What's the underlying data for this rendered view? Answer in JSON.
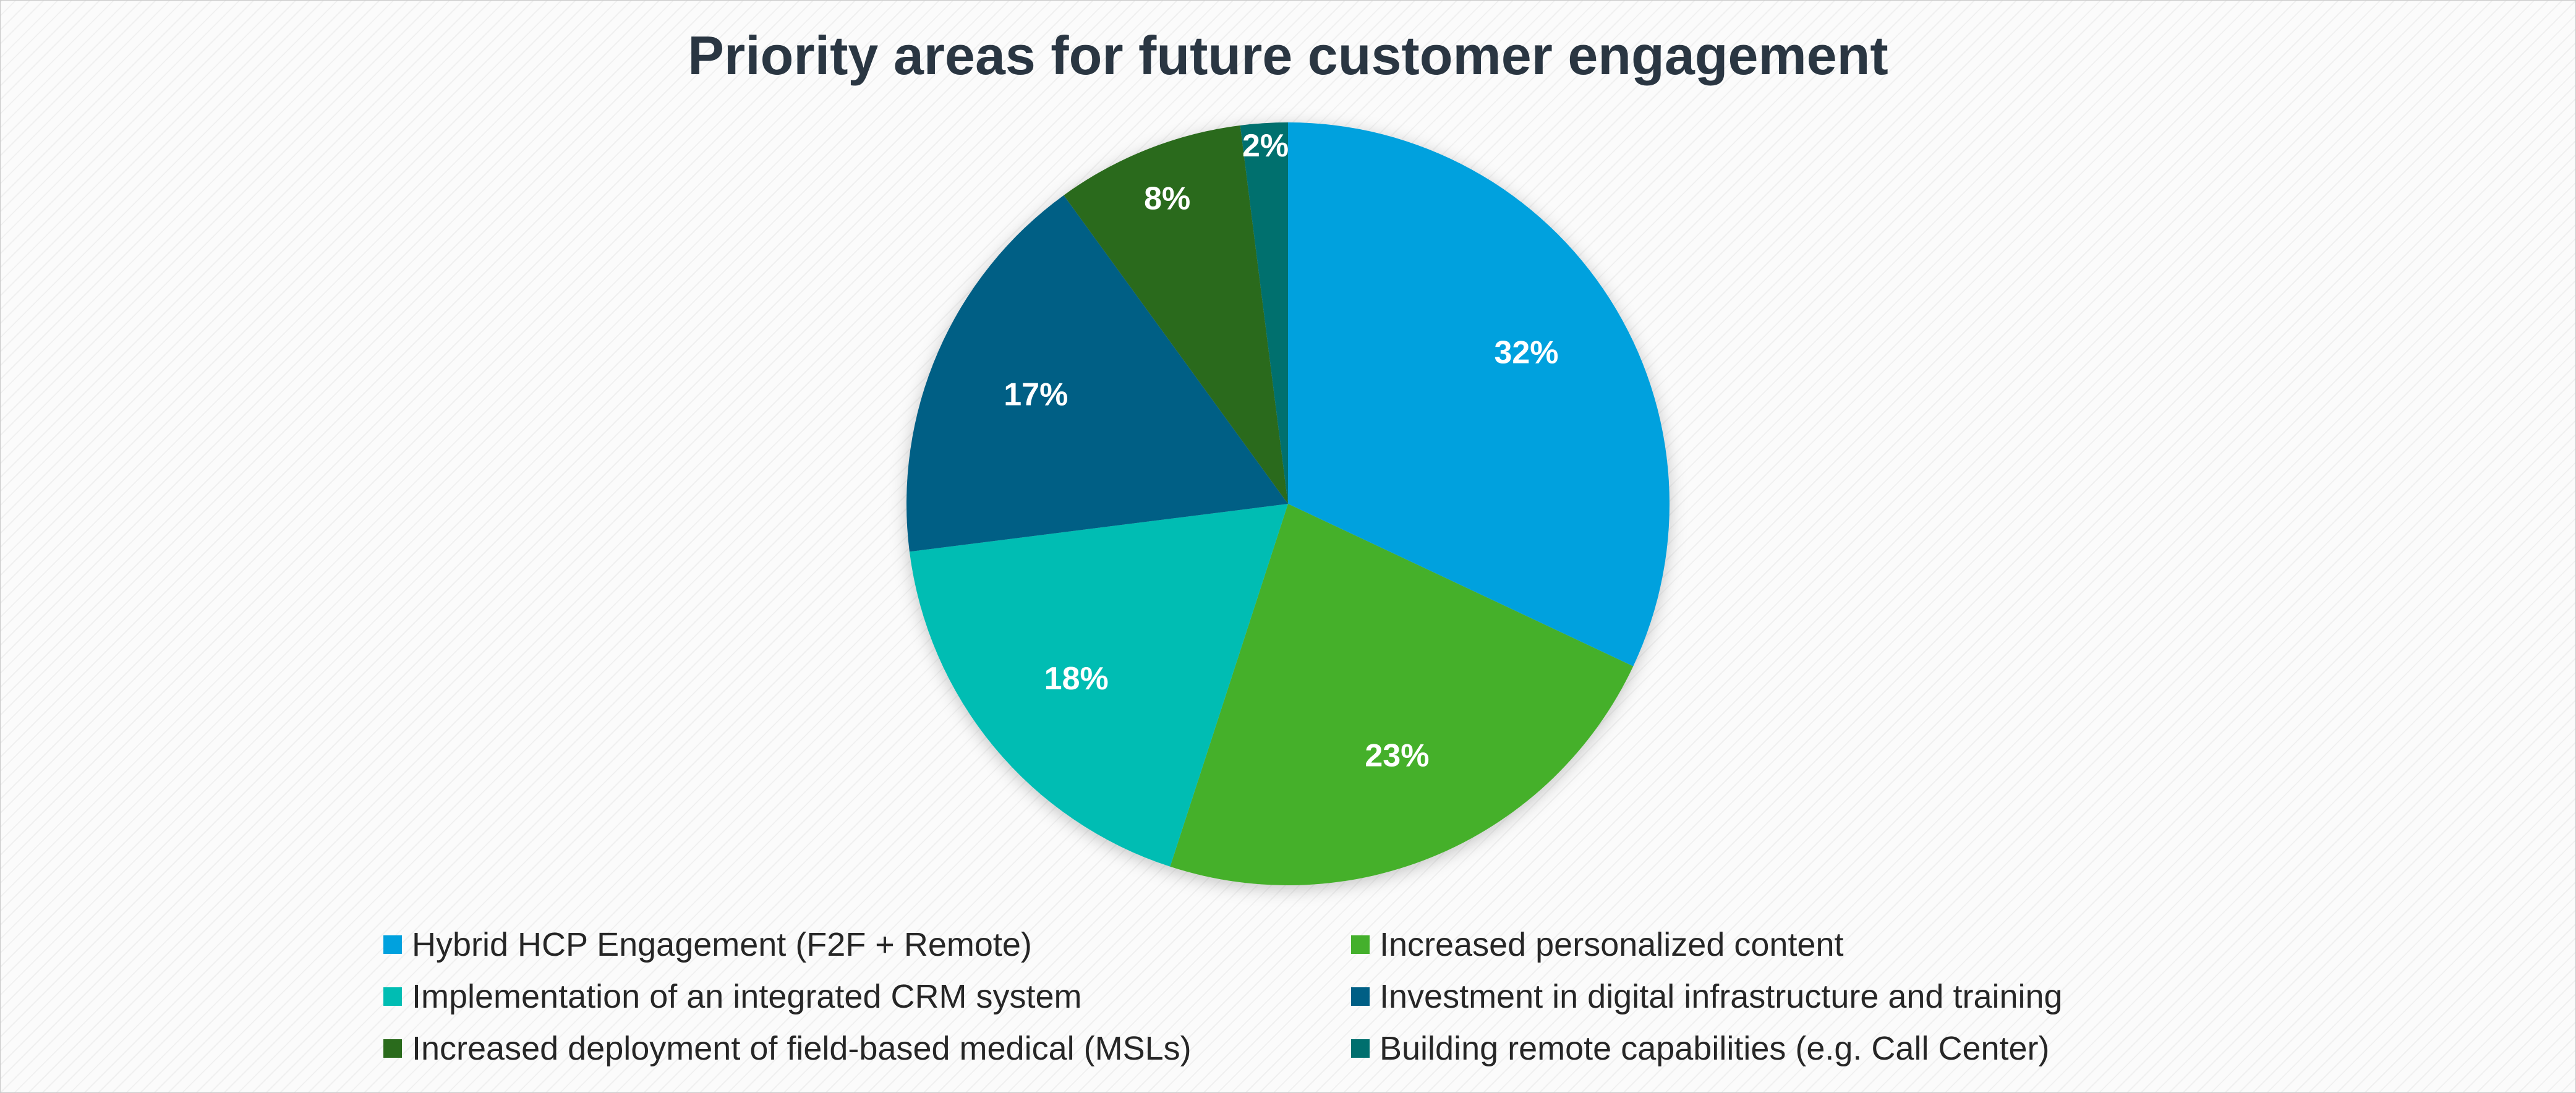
{
  "chart_data": {
    "type": "pie",
    "title": "Priority areas for future customer engagement",
    "categories": [
      "Hybrid HCP Engagement (F2F + Remote)",
      "Increased personalized content",
      "Implementation of an integrated CRM system",
      "Investment in digital infrastructure and training",
      "Increased deployment of field-based medical (MSLs)",
      "Building remote capabilities (e.g. Call Center)"
    ],
    "values": [
      32,
      23,
      18,
      17,
      8,
      2
    ],
    "data_labels": [
      "32%",
      "23%",
      "18%",
      "17%",
      "8%",
      "2%"
    ],
    "colors": [
      "#00a1de",
      "#44b02c",
      "#00bdb3",
      "#005f85",
      "#2a6b1c",
      "#006f6e"
    ],
    "legend_position": "bottom",
    "grid": false
  }
}
